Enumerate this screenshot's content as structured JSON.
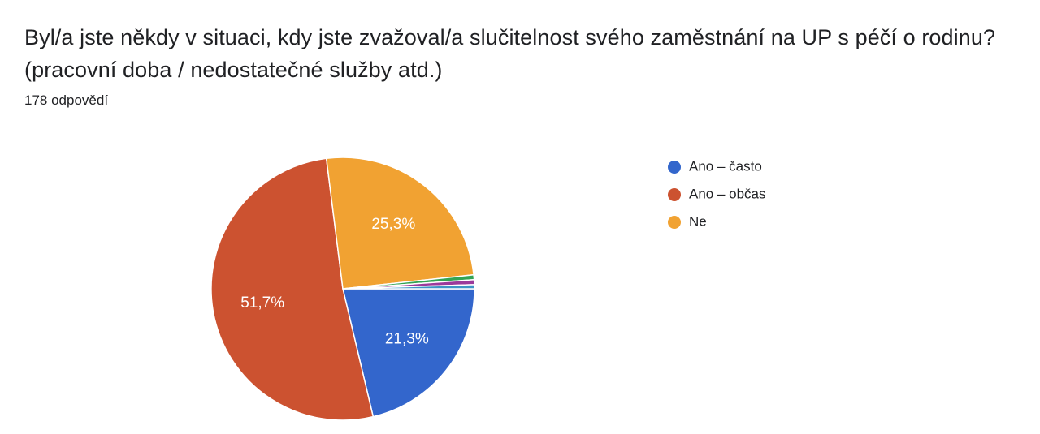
{
  "question": {
    "line1": "Byl/a jste někdy v situaci, kdy jste zvažoval/a slučitelnost svého zaměstnání na UP s péčí o rodinu?",
    "line2": "(pracovní doba / nedostatečné služby atd.)"
  },
  "responses_count": "178 odpovědí",
  "chart_data": {
    "type": "pie",
    "slices": [
      {
        "name": "Ano – často",
        "value": 21.3,
        "label": "21,3%",
        "color": "#3366cc",
        "in_legend": true
      },
      {
        "name": "Ano – občas",
        "value": 51.7,
        "label": "51,7%",
        "color": "#cc5230",
        "in_legend": true
      },
      {
        "name": "Ne",
        "value": 25.3,
        "label": "25,3%",
        "color": "#f1a232",
        "in_legend": true
      },
      {
        "name": "",
        "value": 0.6,
        "label": "",
        "color": "#33a454",
        "in_legend": false
      },
      {
        "name": "",
        "value": 0.6,
        "label": "",
        "color": "#9b3a9b",
        "in_legend": false
      },
      {
        "name": "",
        "value": 0.5,
        "label": "",
        "color": "#3e95c6",
        "in_legend": false
      }
    ],
    "legend_position": "right"
  }
}
